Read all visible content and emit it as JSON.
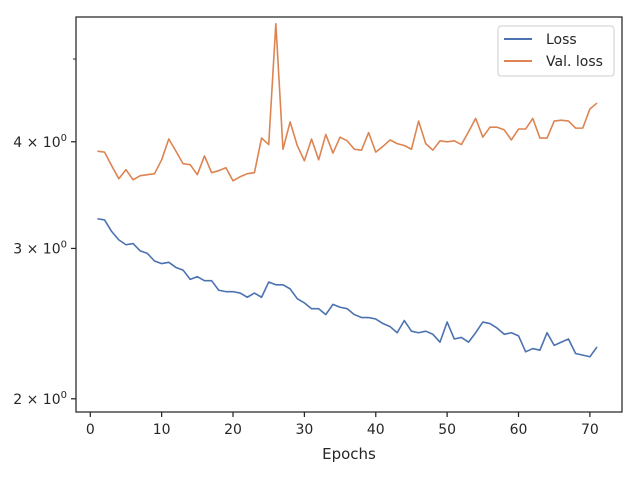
{
  "chart_data": {
    "type": "line",
    "title": "",
    "xlabel": "Epochs",
    "ylabel": "",
    "xlim": [
      -2,
      74.5
    ],
    "ylim": [
      1.93,
      5.6
    ],
    "yscale": "log",
    "grid": false,
    "legend_position": "top-right",
    "x_ticks": [
      0,
      10,
      20,
      30,
      40,
      50,
      60,
      70
    ],
    "x_tick_labels": [
      "0",
      "10",
      "20",
      "30",
      "40",
      "50",
      "60",
      "70"
    ],
    "y_ticks": [
      2,
      3,
      4
    ],
    "y_tick_labels": [
      {
        "base": "2 × 10",
        "exp": "0"
      },
      {
        "base": "3 × 10",
        "exp": "0"
      },
      {
        "base": "4 × 10",
        "exp": "0"
      }
    ],
    "y_minor_ticks": [
      5
    ],
    "x": [
      1,
      2,
      3,
      4,
      5,
      6,
      7,
      8,
      9,
      10,
      11,
      12,
      13,
      14,
      15,
      16,
      17,
      18,
      19,
      20,
      21,
      22,
      23,
      24,
      25,
      26,
      27,
      28,
      29,
      30,
      31,
      32,
      33,
      34,
      35,
      36,
      37,
      38,
      39,
      40,
      41,
      42,
      43,
      44,
      45,
      46,
      47,
      48,
      49,
      50,
      51,
      52,
      53,
      54,
      55,
      56,
      57,
      58,
      59,
      60,
      61,
      62,
      63,
      64,
      65,
      66,
      67,
      68,
      69,
      70,
      71
    ],
    "series": [
      {
        "name": "Loss",
        "color": "#4c72b0",
        "values": [
          3.25,
          3.24,
          3.14,
          3.07,
          3.03,
          3.04,
          2.98,
          2.96,
          2.9,
          2.88,
          2.89,
          2.85,
          2.83,
          2.76,
          2.78,
          2.75,
          2.75,
          2.68,
          2.67,
          2.67,
          2.66,
          2.63,
          2.66,
          2.63,
          2.74,
          2.72,
          2.72,
          2.69,
          2.62,
          2.59,
          2.55,
          2.55,
          2.51,
          2.58,
          2.56,
          2.55,
          2.51,
          2.49,
          2.49,
          2.48,
          2.45,
          2.43,
          2.39,
          2.47,
          2.4,
          2.39,
          2.4,
          2.38,
          2.33,
          2.46,
          2.35,
          2.36,
          2.33,
          2.39,
          2.46,
          2.45,
          2.42,
          2.38,
          2.39,
          2.37,
          2.27,
          2.29,
          2.28,
          2.39,
          2.31,
          2.33,
          2.35,
          2.26,
          2.25,
          2.24,
          2.3
        ]
      },
      {
        "name": "Val. loss",
        "color": "#dd8452",
        "values": [
          3.9,
          3.89,
          3.75,
          3.62,
          3.71,
          3.61,
          3.65,
          3.66,
          3.67,
          3.81,
          4.03,
          3.9,
          3.77,
          3.76,
          3.66,
          3.85,
          3.68,
          3.7,
          3.73,
          3.6,
          3.64,
          3.67,
          3.68,
          4.04,
          3.97,
          5.5,
          3.92,
          4.22,
          3.96,
          3.8,
          4.03,
          3.81,
          4.08,
          3.88,
          4.05,
          4.01,
          3.92,
          3.91,
          4.1,
          3.89,
          3.95,
          4.02,
          3.98,
          3.96,
          3.92,
          4.23,
          3.98,
          3.91,
          4.01,
          4.0,
          4.01,
          3.97,
          4.11,
          4.26,
          4.05,
          4.16,
          4.16,
          4.13,
          4.02,
          4.14,
          4.14,
          4.26,
          4.04,
          4.04,
          4.23,
          4.24,
          4.23,
          4.15,
          4.15,
          4.37,
          4.44
        ]
      }
    ]
  }
}
